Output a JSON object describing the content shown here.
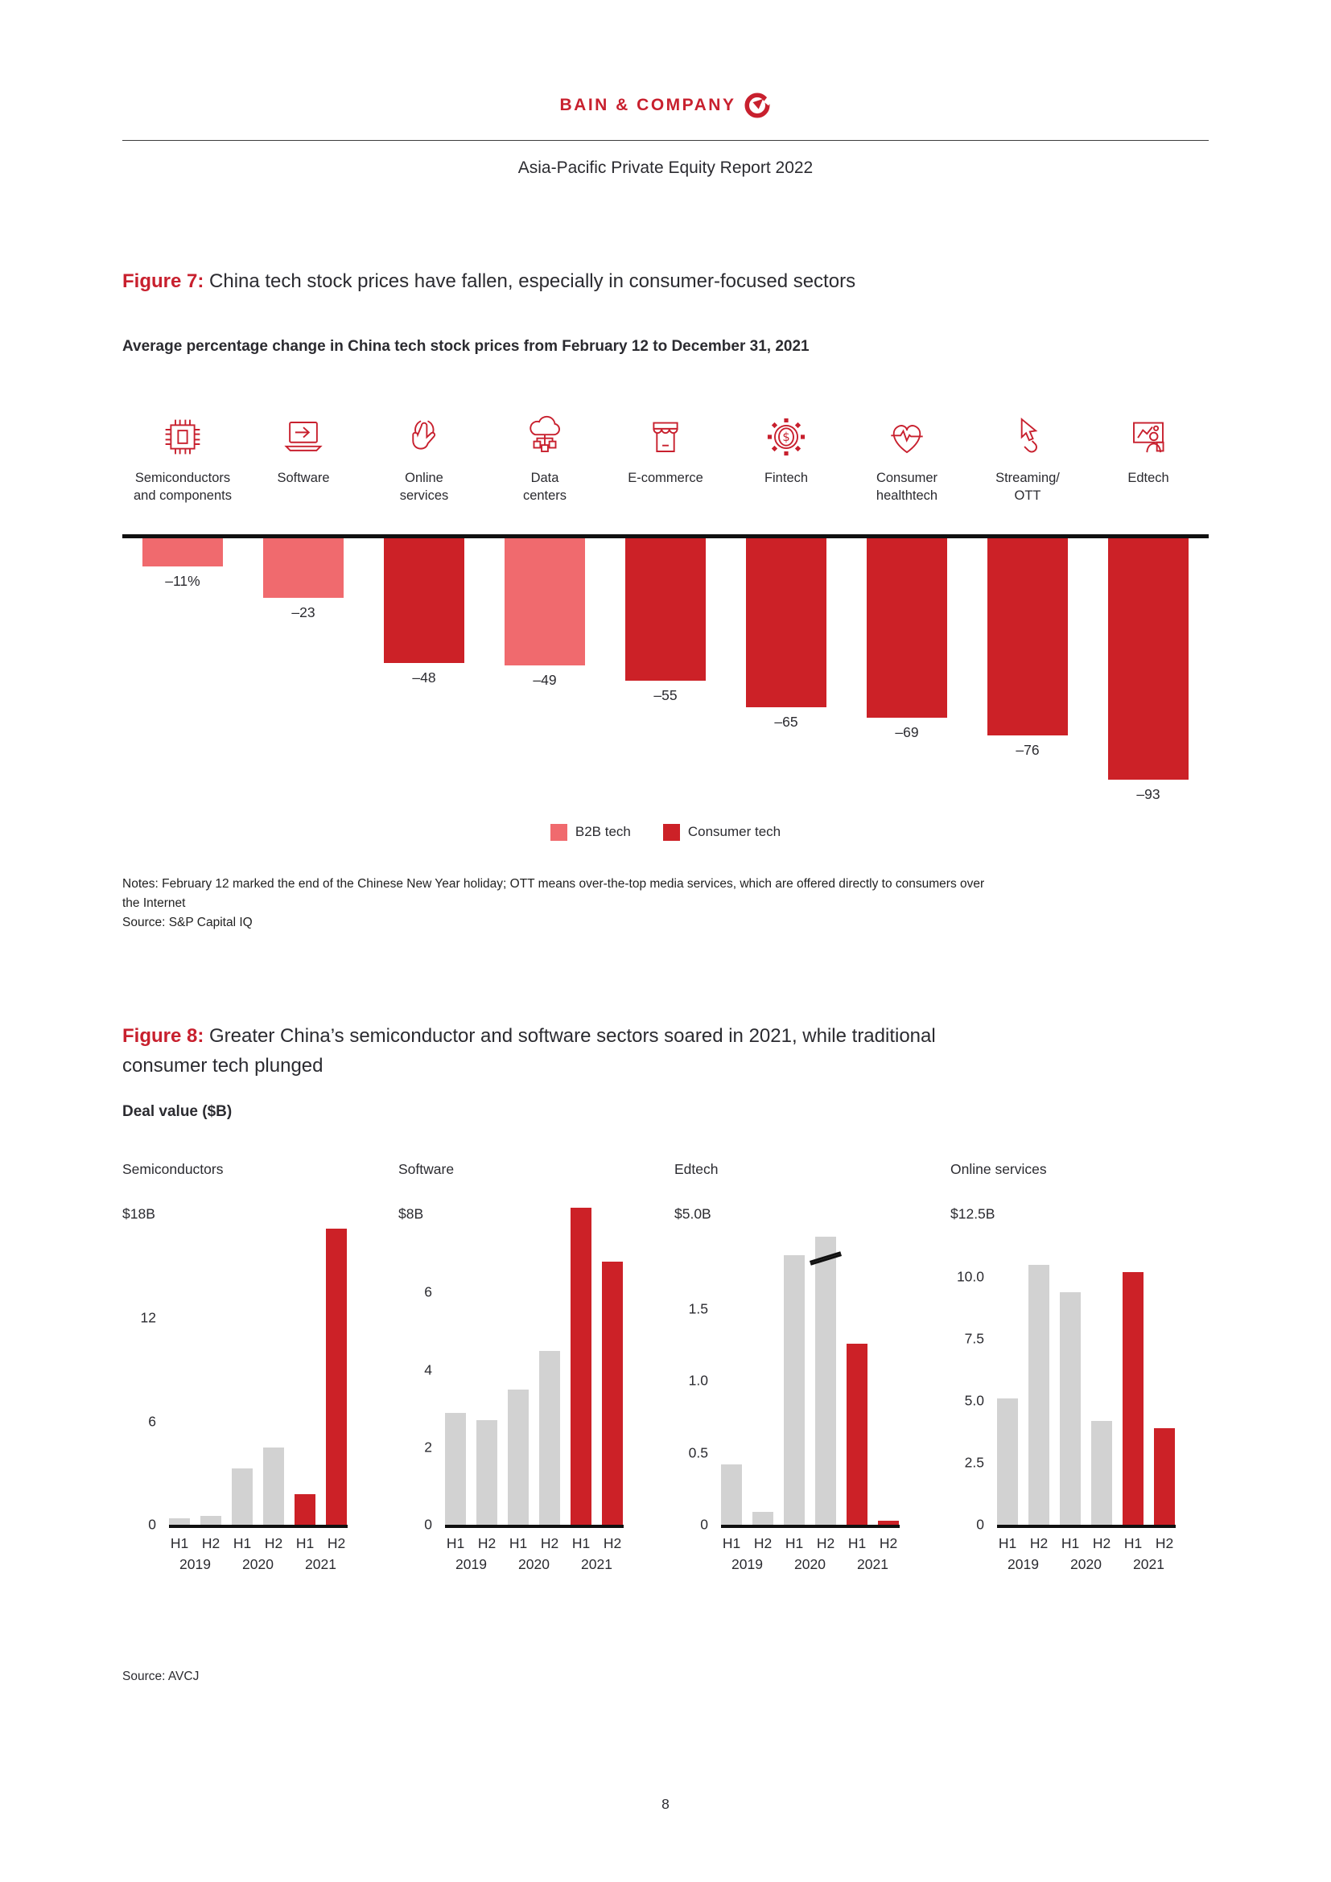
{
  "colors": {
    "brand_red": "#c8202e",
    "b2b_tech": "#f06a6e",
    "consumer_tech": "#cc2127",
    "gray_bar": "#d2d2d2",
    "axis_black": "#101010"
  },
  "page": {
    "brand": "BAIN & COMPANY",
    "doc_title": "Asia-Pacific Private Equity Report 2022",
    "page_number": "8"
  },
  "figure7": {
    "label": "Figure 7:",
    "title": "China tech stock prices have fallen, especially in consumer-focused sectors",
    "subtitle": "Average percentage change in China tech stock prices from February 12 to December 31, 2021",
    "legend": [
      {
        "label": "B2B tech",
        "color": "#f06a6e"
      },
      {
        "label": "Consumer tech",
        "color": "#cc2127"
      }
    ],
    "notes_line1": "Notes: February 12 marked the end of the Chinese New Year holiday; OTT means over-the-top media services, which are offered directly to consumers over",
    "notes_line2": "the Internet",
    "source": "Source: S&P Capital IQ"
  },
  "figure8": {
    "label": "Figure 8:",
    "title_line1": "Greater China’s semiconductor and software sectors soared in 2021, while traditional",
    "title_line2": "consumer tech plunged",
    "subtitle": "Deal value ($B)",
    "source": "Source: AVCJ"
  },
  "chart_data": [
    {
      "id": "figure7-bar-chart",
      "type": "bar",
      "title": "Average percentage change in China tech stock prices from February 12 to December 31, 2021",
      "unit": "percent change",
      "ylim": [
        -93,
        0
      ],
      "categories": [
        "Semiconductors and components",
        "Software",
        "Online services",
        "Data centers",
        "E-commerce",
        "Fintech",
        "Consumer healthtech",
        "Streaming/OTT",
        "Edtech"
      ],
      "label_lines": [
        [
          "Semiconductors",
          "and components"
        ],
        [
          "Software"
        ],
        [
          "Online",
          "services"
        ],
        [
          "Data",
          "centers"
        ],
        [
          "E-commerce"
        ],
        [
          "Fintech"
        ],
        [
          "Consumer",
          "healthtech"
        ],
        [
          "Streaming/",
          "OTT"
        ],
        [
          "Edtech"
        ]
      ],
      "icons": [
        "chip-icon",
        "laptop-arrow-icon",
        "tap-hand-icon",
        "cloud-network-icon",
        "storefront-icon",
        "gear-dollar-icon",
        "heart-pulse-icon",
        "cursor-click-icon",
        "presentation-person-icon"
      ],
      "values": [
        -11,
        -23,
        -48,
        -49,
        -55,
        -65,
        -69,
        -76,
        -93
      ],
      "value_labels": [
        "–11%",
        "–23",
        "–48",
        "–49",
        "–55",
        "–65",
        "–69",
        "–76",
        "–93"
      ],
      "segments": [
        "B2B tech",
        "B2B tech",
        "Consumer tech",
        "B2B tech",
        "Consumer tech",
        "Consumer tech",
        "Consumer tech",
        "Consumer tech",
        "Consumer tech"
      ],
      "legend_position": "bottom-center",
      "grid": false
    },
    {
      "id": "figure8-small-multiples",
      "type": "bar",
      "title": "Deal value ($B)",
      "period_labels": [
        "H1",
        "H2",
        "H1",
        "H2",
        "H1",
        "H2"
      ],
      "year_labels": [
        "2019",
        "2020",
        "2021"
      ],
      "bar_colors": [
        "gray",
        "gray",
        "gray",
        "gray",
        "red",
        "red"
      ],
      "grid": false,
      "panels": [
        {
          "title": "Semiconductors",
          "axis_max_label": "$18B",
          "scale_top": 18,
          "ticks": [
            {
              "label": "12",
              "value": 12
            },
            {
              "label": "6",
              "value": 6
            },
            {
              "label": "0",
              "value": 0
            }
          ],
          "values": [
            0.4,
            0.5,
            3.3,
            4.5,
            1.8,
            17.2
          ]
        },
        {
          "title": "Software",
          "axis_max_label": "$8B",
          "scale_top": 8,
          "ticks": [
            {
              "label": "6",
              "value": 6
            },
            {
              "label": "4",
              "value": 4
            },
            {
              "label": "2",
              "value": 2
            },
            {
              "label": "0",
              "value": 0
            }
          ],
          "values": [
            2.9,
            2.7,
            3.5,
            4.5,
            8.2,
            6.8
          ]
        },
        {
          "title": "Edtech",
          "axis_max_label": "$5.0B",
          "scale_top": 2.15,
          "ticks": [
            {
              "label": "1.5",
              "value": 1.5
            },
            {
              "label": "1.0",
              "value": 1.0
            },
            {
              "label": "0.5",
              "value": 0.5
            },
            {
              "label": "0",
              "value": 0
            }
          ],
          "values": [
            0.42,
            0.09,
            1.87,
            5.0,
            1.26,
            0.03
          ],
          "display_values": [
            0.42,
            0.09,
            1.87,
            2.0,
            1.26,
            0.03
          ],
          "break_index": 3
        },
        {
          "title": "Online services",
          "axis_max_label": "$12.5B",
          "scale_top": 12.5,
          "ticks": [
            {
              "label": "10.0",
              "value": 10
            },
            {
              "label": "7.5",
              "value": 7.5
            },
            {
              "label": "5.0",
              "value": 5
            },
            {
              "label": "2.5",
              "value": 2.5
            },
            {
              "label": "0",
              "value": 0
            }
          ],
          "values": [
            5.1,
            10.5,
            9.4,
            4.2,
            10.2,
            3.9
          ]
        }
      ]
    }
  ]
}
